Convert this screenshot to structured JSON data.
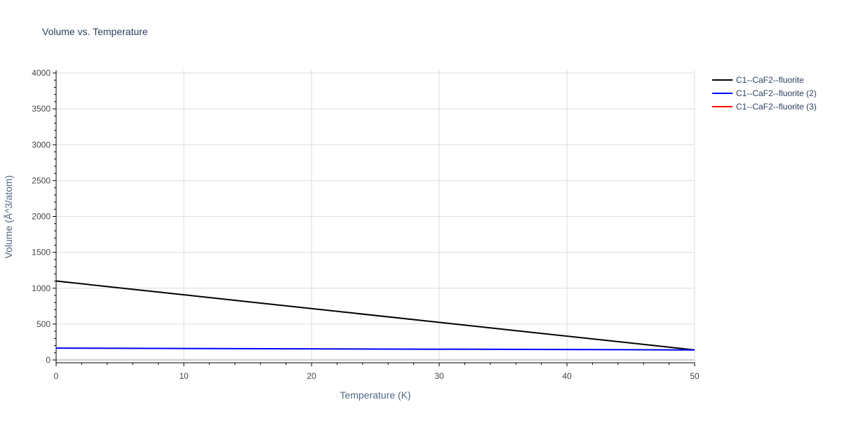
{
  "chart_data": {
    "type": "line",
    "title": "Volume vs. Temperature",
    "xlabel": "Temperature (K)",
    "ylabel": "Volume (Å^3/atom)",
    "xlim": [
      0,
      50
    ],
    "ylim": [
      0,
      4000
    ],
    "xticks": [
      0,
      10,
      20,
      30,
      40,
      50
    ],
    "yticks": [
      0,
      500,
      1000,
      1500,
      2000,
      2500,
      3000,
      3500,
      4000
    ],
    "grid": true,
    "legend_position": "top-right",
    "series": [
      {
        "name": "C1--CaF2--fluorite",
        "color": "#000000",
        "x": [
          0,
          50
        ],
        "y": [
          1100,
          140
        ]
      },
      {
        "name": "C1--CaF2--fluorite (2)",
        "color": "#0000ff",
        "x": [
          0,
          50
        ],
        "y": [
          165,
          140
        ]
      },
      {
        "name": "C1--CaF2--fluorite (3)",
        "color": "#ff0000",
        "x": [],
        "y": []
      }
    ]
  }
}
